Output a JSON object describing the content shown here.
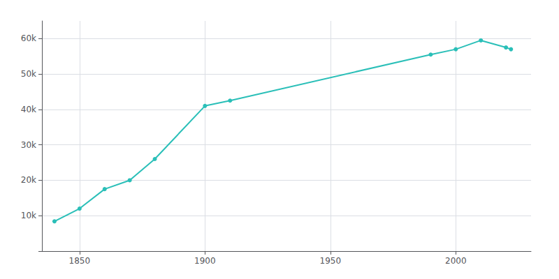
{
  "chart_data": {
    "type": "line",
    "x": [
      1840,
      1850,
      1860,
      1870,
      1880,
      1900,
      1910,
      1990,
      2000,
      2010,
      2020,
      2022
    ],
    "values": [
      8411,
      12000,
      17500,
      20000,
      26000,
      41000,
      42500,
      55500,
      57000,
      59500,
      57500,
      57000
    ],
    "color": "#2abfb8",
    "marker": "circle",
    "xlim": [
      1835,
      2030
    ],
    "xticks": [
      1850,
      1900,
      1950,
      2000
    ],
    "ylim": [
      0,
      65000
    ],
    "yticks": [
      {
        "value": 0,
        "label": null
      },
      {
        "value": 10000,
        "label": "10k"
      },
      {
        "value": 20000,
        "label": "20k"
      },
      {
        "value": 30000,
        "label": "30k"
      },
      {
        "value": 40000,
        "label": "40k"
      },
      {
        "value": 50000,
        "label": "50k"
      },
      {
        "value": 60000,
        "label": "60k"
      }
    ],
    "grid": true
  }
}
